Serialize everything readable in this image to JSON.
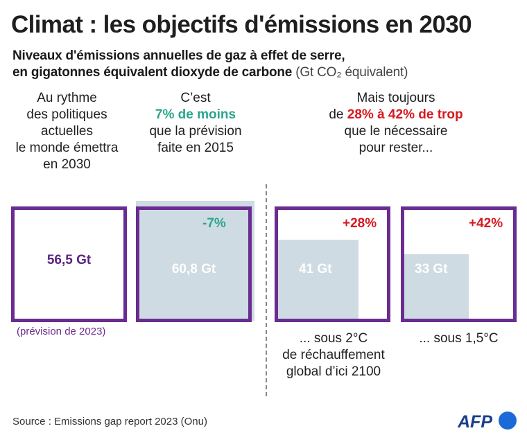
{
  "title": "Climat : les objectifs d'émissions en 2030",
  "subtitle_line1": "Niveaux d'émissions annuelles de gaz à effet de serre,",
  "subtitle_line2_bold": "en gigatonnes équivalent dioxyde de carbone",
  "subtitle_line2_light": "(Gt CO₂ équivalent)",
  "col1": {
    "lines": [
      "Au rythme",
      "des politiques",
      "actuelles",
      "le monde émettra",
      "en 2030"
    ]
  },
  "col2": {
    "line1": "C’est",
    "highlight": "7% de moins",
    "line3": "que la prévision",
    "line4": "faite en 2015"
  },
  "col3": {
    "line1": "Mais toujours",
    "prefix": "de ",
    "highlight": "28% à 42% de trop",
    "line3": "que le nécessaire",
    "line4": "pour rester..."
  },
  "note": "(prévision de 2023)",
  "captions": {
    "c2": [
      "... sous 2°C",
      "de réchauffement",
      "global d’ici 2100"
    ],
    "c15": "... sous 1,5°C"
  },
  "source": "Source : Emissions gap report 2023 (Onu)",
  "logo": "AFP",
  "colors": {
    "purple": "#6a2c91",
    "teal": "#2aa58e",
    "red": "#d7191f",
    "fill": "#cfdbe2"
  },
  "chart_data": {
    "type": "bar",
    "unit": "Gt CO₂ équivalent",
    "bars": [
      {
        "label": "56,5 Gt",
        "value": 56.5,
        "change": ""
      },
      {
        "label": "60,8 Gt",
        "value": 60.8,
        "change": "-7%"
      },
      {
        "label": "41 Gt",
        "value": 41,
        "change": "+28%"
      },
      {
        "label": "33 Gt",
        "value": 33,
        "change": "+42%"
      }
    ]
  }
}
